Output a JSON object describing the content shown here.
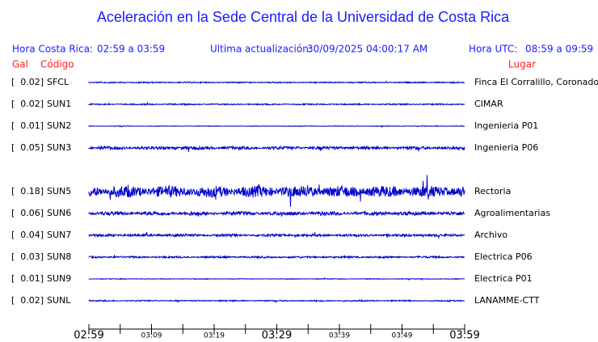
{
  "title": "Aceleración en la Sede Central de la Universidad de Costa Rica",
  "header": {
    "local_label": "Hora Costa Rica:",
    "local_range": "02:59 a 03:59",
    "update_label": "Ultima actualización:",
    "update_value": "30/09/2025 04:00:17 AM",
    "utc_label": "Hora UTC:",
    "utc_range": "08:59 a 09:59"
  },
  "columns": {
    "gal": "Gal",
    "code": "Código",
    "place": "Lugar"
  },
  "stations": [
    {
      "gal": "[  0.02]",
      "code": "SFCL",
      "place": "Finca El Corralillo, Coronado"
    },
    {
      "gal": "[  0.02]",
      "code": "SUN1",
      "place": "CIMAR"
    },
    {
      "gal": "[  0.01]",
      "code": "SUN2",
      "place": "Ingenieria P01"
    },
    {
      "gal": "[  0.05]",
      "code": "SUN3",
      "place": "Ingenieria P06"
    },
    null,
    {
      "gal": "[  0.18]",
      "code": "SUN5",
      "place": "Rectoria"
    },
    {
      "gal": "[  0.06]",
      "code": "SUN6",
      "place": "Agroalimentarias"
    },
    {
      "gal": "[  0.04]",
      "code": "SUN7",
      "place": "Archivo"
    },
    {
      "gal": "[  0.03]",
      "code": "SUN8",
      "place": "Electrica P06"
    },
    {
      "gal": "[  0.01]",
      "code": "SUN9",
      "place": "Electrica P01"
    },
    {
      "gal": "[  0.02]",
      "code": "SUNL",
      "place": "LANAMME-CTT"
    }
  ],
  "time_axis": {
    "labels": [
      "02:59",
      "03:09",
      "03:19",
      "03:29",
      "03:39",
      "03:49",
      "03:59"
    ]
  }
}
